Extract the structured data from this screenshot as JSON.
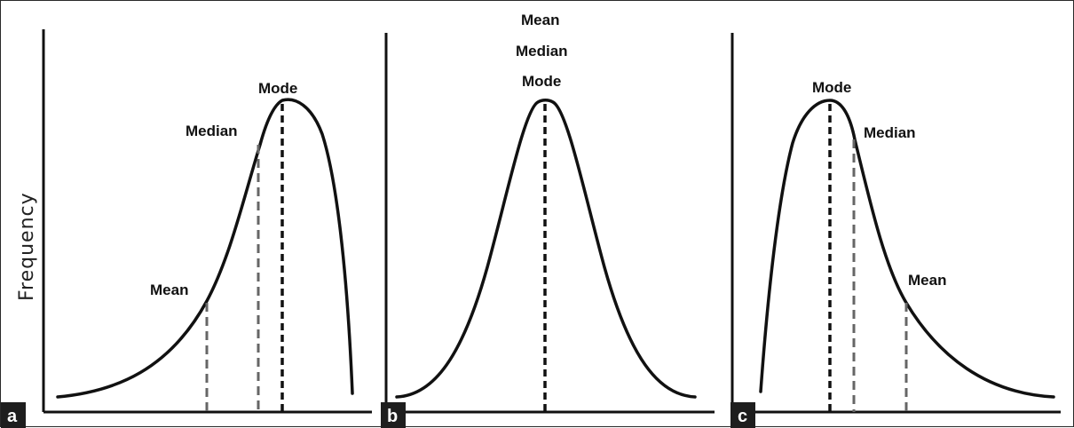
{
  "y_axis_label": "Frequency",
  "panels": [
    {
      "badge": "a",
      "labels": {
        "mode": "Mode",
        "median": "Median",
        "mean": "Mean"
      }
    },
    {
      "badge": "b",
      "labels": {
        "mean": "Mean",
        "median": "Median",
        "mode": "Mode"
      }
    },
    {
      "badge": "c",
      "labels": {
        "mode": "Mode",
        "median": "Median",
        "mean": "Mean"
      }
    }
  ],
  "colors": {
    "curve": "#111111",
    "mode_line": "#111111",
    "median_mean_lines": "#666666",
    "badge_background": "#1e1e1e",
    "badge_text": "#ffffff"
  }
}
